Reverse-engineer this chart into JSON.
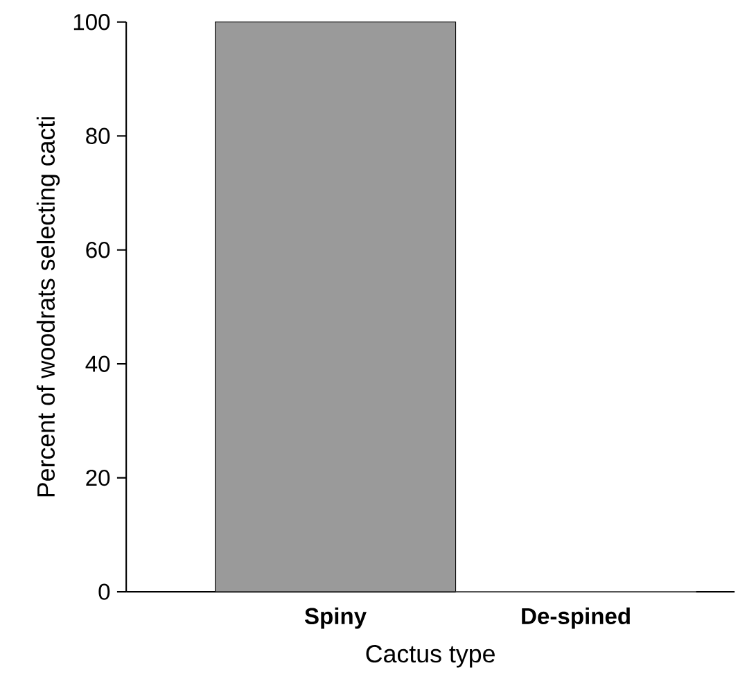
{
  "chart_data": {
    "type": "bar",
    "xlabel": "Cactus type",
    "ylabel": "Percent of woodrats selecting cacti",
    "categories": [
      "Spiny",
      "De-spined"
    ],
    "values": [
      100,
      0
    ],
    "color": "#9a9a9a",
    "ylim": [
      0,
      100
    ],
    "yticks": [
      0,
      20,
      40,
      60,
      80,
      100
    ]
  }
}
